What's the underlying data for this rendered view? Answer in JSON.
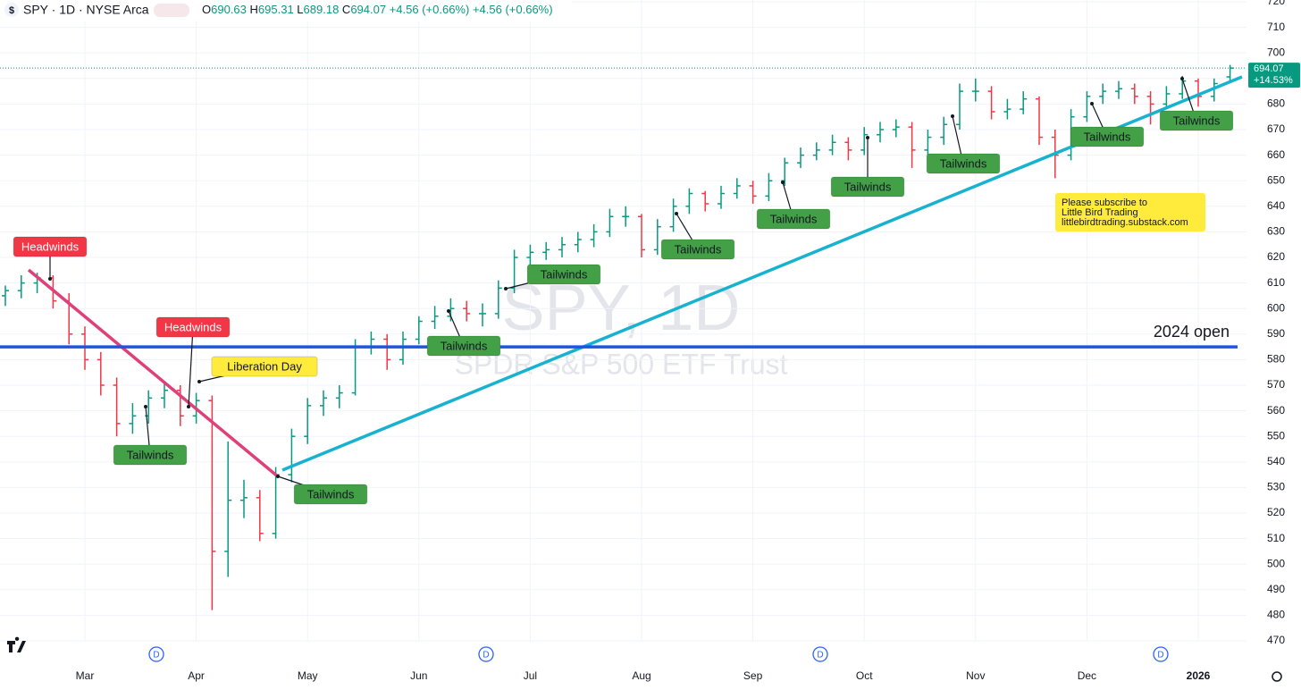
{
  "header": {
    "symbol": "SPY · 1D · NYSE Arca",
    "icon": "$",
    "ohlc": [
      {
        "letter": "O",
        "value": "690.63"
      },
      {
        "letter": "H",
        "value": "695.31"
      },
      {
        "letter": "L",
        "value": "689.18"
      },
      {
        "letter": "C",
        "value": "694.07"
      }
    ],
    "change": "+4.56 (+0.66%)",
    "change2": "+4.56 (+0.66%)"
  },
  "chart_data": {
    "type": "ohlc",
    "watermark": "SPY, 1D",
    "watermark_sub": "SPDR S&P 500 ETF Trust",
    "categories": [
      null,
      null,
      null,
      null,
      null,
      "Mar",
      null,
      null,
      null,
      null,
      null,
      null,
      "Apr",
      null,
      null,
      null,
      null,
      null,
      null,
      "May",
      null,
      null,
      null,
      null,
      null,
      null,
      "Jun",
      null,
      null,
      null,
      null,
      null,
      null,
      "Jul",
      null,
      null,
      null,
      null,
      null,
      null,
      "Aug",
      null,
      null,
      null,
      null,
      null,
      null,
      "Sep",
      null,
      null,
      null,
      null,
      null,
      null,
      "Oct",
      null,
      null,
      null,
      null,
      null,
      null,
      "Nov",
      null,
      null,
      null,
      null,
      null,
      null,
      "Dec",
      null,
      null,
      null,
      null,
      null,
      null,
      "2026",
      null,
      null
    ],
    "series": [
      {
        "name": "SPY",
        "up_color": "#089981",
        "down_color": "#f23645",
        "open": [
          605,
          607,
          610,
          612,
          603,
          590,
          580,
          570,
          555,
          558,
          565,
          568,
          558,
          564,
          505,
          525,
          526,
          512,
          535,
          550,
          562,
          565,
          567,
          585,
          588,
          580,
          588,
          595,
          597,
          600,
          598,
          598,
          608,
          620,
          622,
          623,
          625,
          627,
          630,
          636,
          636,
          623,
          632,
          640,
          645,
          641,
          645,
          648,
          644,
          650,
          657,
          660,
          662,
          665,
          662,
          668,
          670,
          671,
          662,
          667,
          672,
          685,
          685,
          677,
          678,
          682,
          667,
          660,
          675,
          683,
          685,
          686,
          683,
          680,
          684,
          689,
          683,
          690.63
        ],
        "high": [
          609,
          613,
          614,
          613,
          606,
          593,
          583,
          573,
          563,
          568,
          571,
          570,
          567,
          566,
          548,
          533,
          529,
          538,
          553,
          565,
          568,
          570,
          588,
          591,
          590,
          591,
          597,
          601,
          604,
          603,
          602,
          611,
          623,
          625,
          626,
          628,
          630,
          633,
          639,
          640,
          637,
          635,
          643,
          647,
          646,
          648,
          651,
          650,
          653,
          659,
          663,
          665,
          668,
          667,
          671,
          673,
          674,
          673,
          670,
          675,
          688,
          690,
          687,
          682,
          685,
          683,
          670,
          678,
          685,
          688,
          689,
          688,
          685,
          687,
          691,
          690,
          690,
          695.31
        ],
        "low": [
          601,
          604,
          606,
          600,
          586,
          576,
          566,
          550,
          551,
          555,
          561,
          554,
          555,
          482,
          495,
          518,
          509,
          510,
          532,
          547,
          558,
          561,
          566,
          582,
          576,
          578,
          586,
          592,
          595,
          595,
          593,
          596,
          606,
          617,
          619,
          620,
          622,
          624,
          628,
          632,
          620,
          621,
          630,
          637,
          638,
          639,
          643,
          641,
          642,
          648,
          655,
          658,
          660,
          658,
          660,
          665,
          667,
          655,
          659,
          664,
          670,
          681,
          674,
          674,
          676,
          664,
          651,
          658,
          673,
          680,
          682,
          680,
          672,
          678,
          682,
          679,
          681,
          689.18
        ],
        "close": [
          607,
          610,
          612,
          603,
          590,
          580,
          570,
          555,
          558,
          565,
          568,
          558,
          564,
          505,
          525,
          526,
          512,
          535,
          550,
          562,
          565,
          567,
          585,
          588,
          580,
          588,
          595,
          597,
          600,
          598,
          598,
          608,
          620,
          622,
          623,
          625,
          627,
          630,
          636,
          636,
          623,
          632,
          640,
          645,
          641,
          645,
          648,
          644,
          650,
          657,
          660,
          662,
          665,
          662,
          668,
          670,
          671,
          662,
          667,
          672,
          685,
          685,
          677,
          678,
          682,
          667,
          660,
          675,
          683,
          685,
          686,
          683,
          680,
          684,
          689,
          683,
          688,
          694.07
        ]
      }
    ],
    "ylim": [
      470,
      720
    ],
    "yticks": [
      470,
      480,
      490,
      500,
      510,
      520,
      530,
      540,
      550,
      560,
      570,
      580,
      590,
      600,
      610,
      620,
      630,
      640,
      650,
      660,
      670,
      680,
      690,
      700,
      710,
      720
    ],
    "grid": true,
    "last_price": 694.07,
    "last_change": "+14.53%",
    "hlines": [
      {
        "value": 585,
        "label": "2024 open",
        "color": "#1e53e5"
      }
    ],
    "annotations": [
      {
        "text": "Headwinds",
        "kind": "red"
      },
      {
        "text": "Headwinds",
        "kind": "red"
      },
      {
        "text": "Liberation Day",
        "kind": "yellow"
      },
      {
        "text": "Tailwinds",
        "kind": "green"
      },
      {
        "text": "Tailwinds",
        "kind": "green"
      },
      {
        "text": "Tailwinds",
        "kind": "green"
      },
      {
        "text": "Tailwinds",
        "kind": "green"
      },
      {
        "text": "Tailwinds",
        "kind": "green"
      },
      {
        "text": "Tailwinds",
        "kind": "green"
      },
      {
        "text": "Tailwinds",
        "kind": "green"
      },
      {
        "text": "Tailwinds",
        "kind": "green"
      },
      {
        "text": "Tailwinds",
        "kind": "green"
      },
      {
        "text": "Tailwinds",
        "kind": "green"
      }
    ],
    "note": [
      "Please subscribe to",
      "Little Bird Trading",
      "littlebirdtrading.substack.com"
    ],
    "dividend_marker": "D"
  }
}
